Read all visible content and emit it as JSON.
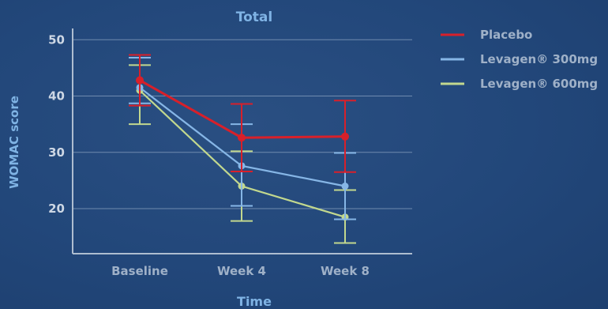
{
  "chart_data": {
    "type": "line",
    "title": "Total",
    "xlabel": "Time",
    "ylabel": "WOMAC score",
    "categories": [
      "Baseline",
      "Week 4",
      "Week 8"
    ],
    "ylim": [
      12,
      52
    ],
    "yticks": [
      20,
      30,
      40,
      50
    ],
    "grid": true,
    "legend_position": "top-right",
    "series": [
      {
        "name": "Placebo",
        "color": "#d8202a",
        "values": [
          42.8,
          32.6,
          32.8
        ],
        "error_low": [
          38.3,
          26.6,
          26.5
        ],
        "error_high": [
          47.3,
          38.6,
          39.2
        ]
      },
      {
        "name": "Levagen® 300mg",
        "color": "#86b6e6",
        "values": [
          41.5,
          27.6,
          24.0
        ],
        "error_low": [
          38.7,
          20.5,
          18.1
        ],
        "error_high": [
          46.8,
          35.0,
          29.9
        ]
      },
      {
        "name": "Levagen® 600mg",
        "color": "#c2d88e",
        "values": [
          41.0,
          24.0,
          18.5
        ],
        "error_low": [
          35.0,
          17.8,
          13.9
        ],
        "error_high": [
          45.5,
          30.2,
          23.3
        ]
      }
    ]
  }
}
